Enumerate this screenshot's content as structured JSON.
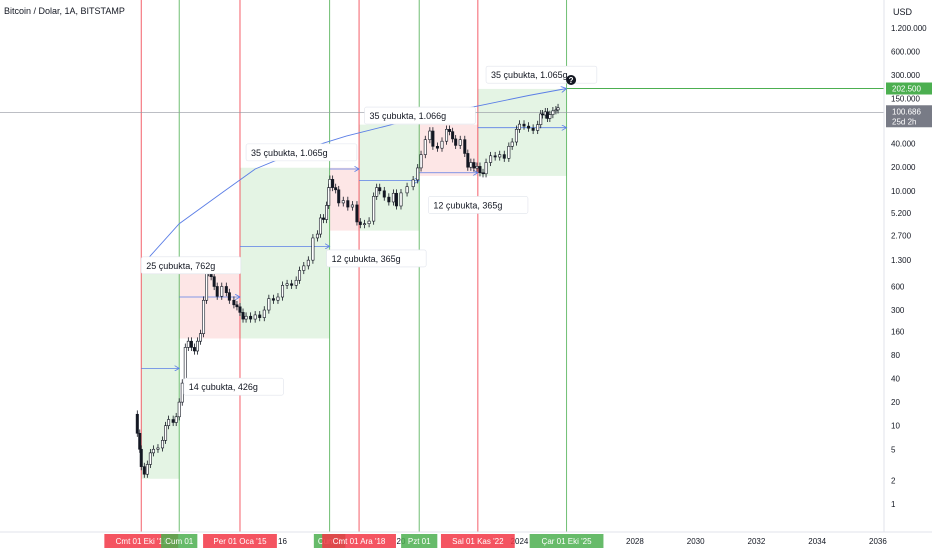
{
  "header": {
    "title": "Bitcoin / Dolar, 1A, BITSTAMP",
    "currency": "USD"
  },
  "colors": {
    "up": "#131722",
    "down": "#131722",
    "green_zone": "#e4f4e4",
    "red_zone": "#fde6e6",
    "green_line": "#4caf50",
    "red_line": "#f23645",
    "arrow": "#5b7ee6",
    "target_badge": "#4caf50",
    "price_badge": "#787b86"
  },
  "chart_data": {
    "type": "candlestick",
    "y_scale": "log",
    "ylim": [
      0.6,
      2200000
    ],
    "y_ticks": [
      "1.200.000",
      "600.000",
      "300.000",
      "150.000",
      "40.000",
      "20.000",
      "10.000",
      "5.200",
      "2.700",
      "1.300",
      "600",
      "300",
      "160",
      "80",
      "40",
      "20",
      "10",
      "5",
      "2",
      "1"
    ],
    "y_tick_values": [
      1200000,
      600000,
      300000,
      150000,
      40000,
      20000,
      10000,
      5200,
      2700,
      1300,
      600,
      300,
      160,
      80,
      40,
      20,
      10,
      5,
      2,
      1
    ],
    "x_ticks": [
      "16",
      "20",
      "2024",
      "2028",
      "2030",
      "2032",
      "2034",
      "2036"
    ],
    "x_tick_years": [
      2016.4,
      2020.3,
      2024.2,
      2028.0,
      2030.0,
      2032.0,
      2034.0,
      2036.0
    ],
    "x_range": [
      2007.1,
      2036.2
    ],
    "price_badge": {
      "value": "100.686",
      "sub": "25d 2h",
      "y": 100686
    },
    "target_badge": {
      "value": "202.500",
      "y": 202500
    },
    "date_labels": [
      {
        "text": "Cmt 01 Eki '11",
        "year": 2011.75,
        "color": "red"
      },
      {
        "text": "Cum 01",
        "year": 2013.0,
        "color": "green"
      },
      {
        "text": "Per 01 Oca '15",
        "year": 2015.0,
        "color": "red"
      },
      {
        "text": "Cum 0",
        "year": 2017.95,
        "color": "green"
      },
      {
        "text": "Cmt 01 Ara '18",
        "year": 2018.92,
        "color": "red"
      },
      {
        "text": "Pzt 01",
        "year": 2020.9,
        "color": "green"
      },
      {
        "text": "Sal 01 Kas '22",
        "year": 2022.83,
        "color": "red"
      },
      {
        "text": "Çar 01 Eki '25",
        "year": 2025.75,
        "color": "green"
      }
    ],
    "vertical_lines": [
      {
        "year": 2011.75,
        "color": "red"
      },
      {
        "year": 2013.0,
        "color": "green"
      },
      {
        "year": 2015.0,
        "color": "red"
      },
      {
        "year": 2017.95,
        "color": "green"
      },
      {
        "year": 2018.92,
        "color": "red"
      },
      {
        "year": 2020.9,
        "color": "green"
      },
      {
        "year": 2022.83,
        "color": "red"
      },
      {
        "year": 2025.75,
        "color": "green"
      }
    ],
    "zones": [
      {
        "type": "green",
        "x0": 2011.75,
        "x1": 2013.0,
        "y0": 2.1,
        "y1": 1400
      },
      {
        "type": "red",
        "x0": 2013.0,
        "x1": 2015.0,
        "y0": 130,
        "y1": 1250
      },
      {
        "type": "green",
        "x0": 2015.0,
        "x1": 2017.95,
        "y0": 130,
        "y1": 19700
      },
      {
        "type": "red",
        "x0": 2017.95,
        "x1": 2018.92,
        "y0": 3100,
        "y1": 19700
      },
      {
        "type": "green",
        "x0": 2018.92,
        "x1": 2020.9,
        "y0": 3100,
        "y1": 70000
      },
      {
        "type": "red",
        "x0": 2020.9,
        "x1": 2022.83,
        "y0": 15500,
        "y1": 70000
      },
      {
        "type": "green",
        "x0": 2022.83,
        "x1": 2025.75,
        "y0": 15500,
        "y1": 200000
      }
    ],
    "annotations": [
      {
        "text": "25 çubukta, 762g",
        "year": 2011.75,
        "y": 1100
      },
      {
        "text": "14 çubukta, 426g",
        "year": 2013.15,
        "y": 31
      },
      {
        "text": "35 çubukta, 1.065g",
        "year": 2015.2,
        "y": 30500
      },
      {
        "text": "12 çubukta, 365g",
        "year": 2017.85,
        "y": 1350
      },
      {
        "text": "35 çubukta, 1.066g",
        "year": 2019.1,
        "y": 90000
      },
      {
        "text": "12 çubukta, 365g",
        "year": 2021.2,
        "y": 6500
      },
      {
        "text": "35 çubukta, 1.065g",
        "year": 2023.1,
        "y": 300000
      }
    ],
    "arrows": [
      {
        "from": [
          2011.75,
          54
        ],
        "to": [
          2013.0,
          54
        ]
      },
      {
        "from": [
          2013.0,
          440
        ],
        "to": [
          2015.0,
          440
        ]
      },
      {
        "from": [
          2015.0,
          1950
        ],
        "to": [
          2017.95,
          1950
        ]
      },
      {
        "from": [
          2017.95,
          19000
        ],
        "to": [
          2018.92,
          19000
        ]
      },
      {
        "from": [
          2018.92,
          13500
        ],
        "to": [
          2020.9,
          13500
        ]
      },
      {
        "from": [
          2020.9,
          17000
        ],
        "to": [
          2022.83,
          17000
        ]
      },
      {
        "from": [
          2022.83,
          64000
        ],
        "to": [
          2025.75,
          64000
        ]
      }
    ],
    "arc": [
      [
        2011.75,
        1100
      ],
      [
        2013.0,
        3800
      ],
      [
        2014.5,
        10000
      ],
      [
        2015.5,
        19000
      ],
      [
        2017.0,
        33000
      ],
      [
        2018.5,
        50000
      ],
      [
        2020.0,
        70000
      ],
      [
        2021.5,
        95000
      ],
      [
        2023.0,
        125000
      ],
      [
        2024.5,
        165000
      ],
      [
        2025.75,
        202500
      ]
    ],
    "question_mark": {
      "year": 2025.9,
      "y": 260000,
      "text": "?"
    },
    "price_points": [
      [
        2011.5,
        14
      ],
      [
        2011.62,
        8
      ],
      [
        2011.7,
        5
      ],
      [
        2011.75,
        3
      ],
      [
        2011.85,
        2.4
      ],
      [
        2011.95,
        3.2
      ],
      [
        2012.05,
        4.5
      ],
      [
        2012.15,
        5
      ],
      [
        2012.3,
        5.2
      ],
      [
        2012.45,
        6.5
      ],
      [
        2012.55,
        10
      ],
      [
        2012.65,
        12
      ],
      [
        2012.8,
        11
      ],
      [
        2012.9,
        13
      ],
      [
        2013.0,
        20
      ],
      [
        2013.1,
        35
      ],
      [
        2013.2,
        100
      ],
      [
        2013.3,
        120
      ],
      [
        2013.4,
        100
      ],
      [
        2013.5,
        90
      ],
      [
        2013.6,
        120
      ],
      [
        2013.7,
        150
      ],
      [
        2013.8,
        400
      ],
      [
        2013.9,
        900
      ],
      [
        2013.96,
        1000
      ],
      [
        2014.05,
        800
      ],
      [
        2014.15,
        600
      ],
      [
        2014.25,
        450
      ],
      [
        2014.4,
        600
      ],
      [
        2014.55,
        500
      ],
      [
        2014.65,
        400
      ],
      [
        2014.8,
        350
      ],
      [
        2014.9,
        330
      ],
      [
        2015.0,
        280
      ],
      [
        2015.1,
        230
      ],
      [
        2015.2,
        250
      ],
      [
        2015.35,
        230
      ],
      [
        2015.5,
        260
      ],
      [
        2015.65,
        240
      ],
      [
        2015.8,
        300
      ],
      [
        2015.95,
        420
      ],
      [
        2016.1,
        400
      ],
      [
        2016.25,
        440
      ],
      [
        2016.4,
        620
      ],
      [
        2016.55,
        650
      ],
      [
        2016.7,
        620
      ],
      [
        2016.85,
        720
      ],
      [
        2016.96,
        960
      ],
      [
        2017.1,
        1100
      ],
      [
        2017.25,
        1300
      ],
      [
        2017.4,
        2500
      ],
      [
        2017.55,
        2800
      ],
      [
        2017.65,
        4500
      ],
      [
        2017.75,
        4300
      ],
      [
        2017.85,
        6500
      ],
      [
        2017.92,
        11000
      ],
      [
        2017.96,
        14000
      ],
      [
        2018.05,
        11000
      ],
      [
        2018.15,
        10300
      ],
      [
        2018.25,
        7000
      ],
      [
        2018.4,
        7500
      ],
      [
        2018.55,
        6200
      ],
      [
        2018.7,
        6600
      ],
      [
        2018.85,
        4000
      ],
      [
        2018.96,
        3700
      ],
      [
        2019.1,
        3800
      ],
      [
        2019.25,
        4100
      ],
      [
        2019.4,
        8500
      ],
      [
        2019.5,
        11000
      ],
      [
        2019.6,
        10000
      ],
      [
        2019.75,
        8300
      ],
      [
        2019.9,
        7200
      ],
      [
        2020.05,
        9300
      ],
      [
        2020.15,
        6400
      ],
      [
        2020.3,
        9400
      ],
      [
        2020.5,
        11300
      ],
      [
        2020.7,
        13800
      ],
      [
        2020.85,
        19600
      ],
      [
        2020.96,
        29000
      ],
      [
        2021.1,
        45000
      ],
      [
        2021.25,
        58000
      ],
      [
        2021.35,
        37000
      ],
      [
        2021.5,
        35000
      ],
      [
        2021.65,
        43000
      ],
      [
        2021.8,
        61000
      ],
      [
        2021.9,
        57000
      ],
      [
        2022.0,
        46000
      ],
      [
        2022.1,
        38000
      ],
      [
        2022.25,
        45000
      ],
      [
        2022.4,
        30000
      ],
      [
        2022.5,
        20000
      ],
      [
        2022.6,
        23000
      ],
      [
        2022.7,
        19500
      ],
      [
        2022.8,
        20500
      ],
      [
        2022.9,
        17000
      ],
      [
        2023.0,
        16500
      ],
      [
        2023.1,
        23000
      ],
      [
        2023.25,
        28000
      ],
      [
        2023.4,
        27000
      ],
      [
        2023.55,
        29000
      ],
      [
        2023.7,
        26000
      ],
      [
        2023.85,
        37000
      ],
      [
        2023.96,
        42000
      ],
      [
        2024.1,
        61000
      ],
      [
        2024.2,
        71000
      ],
      [
        2024.35,
        67000
      ],
      [
        2024.5,
        63000
      ],
      [
        2024.65,
        59000
      ],
      [
        2024.8,
        70000
      ],
      [
        2024.9,
        96000
      ],
      [
        2024.96,
        93000
      ],
      [
        2025.05,
        102000
      ],
      [
        2025.12,
        84000
      ],
      [
        2025.2,
        94000
      ],
      [
        2025.3,
        105000
      ],
      [
        2025.4,
        108000
      ],
      [
        2025.47,
        115000
      ]
    ]
  }
}
